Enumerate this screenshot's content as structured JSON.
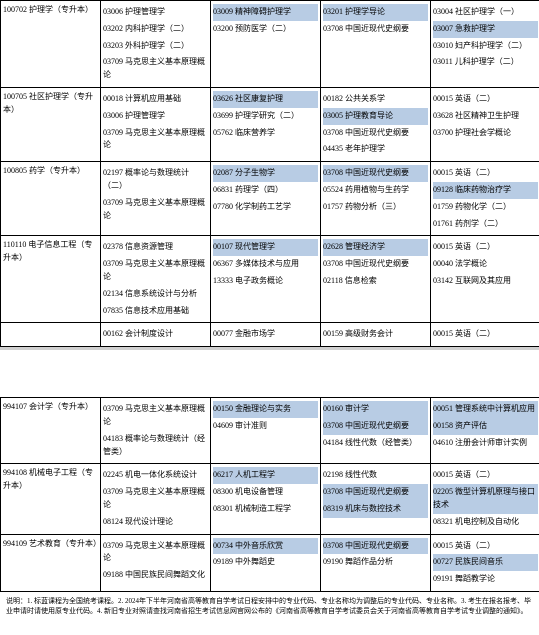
{
  "colors": {
    "highlight": "#b8cce4",
    "border": "#000000",
    "background": "#ffffff"
  },
  "table1": {
    "rows": [
      {
        "major": "100702 护理学（专升本）",
        "c1": [
          "03006 护理管理学",
          "03202 内科护理学（二）",
          "03203 外科护理学（二）",
          "03709 马克思主义基本原理概论"
        ],
        "c2": [
          "03009 精神障碍护理学",
          "03200 预防医学（二）"
        ],
        "c3": [
          "03201 护理学导论",
          "03708 中国近现代史纲要"
        ],
        "c4": [
          "03004 社区护理学（一）",
          "03007 急救护理学",
          "03010 妇产科护理学（二）",
          "03011 儿科护理学（二）"
        ],
        "hl_c1": [
          false,
          false,
          false,
          false
        ],
        "hl_c2": [
          true,
          false
        ],
        "hl_c3": [
          true,
          false
        ],
        "hl_c4": [
          false,
          true,
          false,
          false
        ]
      },
      {
        "major": "100705 社区护理学（专升本）",
        "c1": [
          "00018 计算机应用基础",
          "03006 护理管理学",
          "03709 马克思主义基本原理概论"
        ],
        "c2": [
          "03626 社区康复护理",
          "03699 护理学研究（二）",
          "05762 临床营养学"
        ],
        "c3": [
          "00182 公共关系学",
          "03005 护理教育导论",
          "03708 中国近现代史纲要",
          "04435 老年护理学"
        ],
        "c4": [
          "00015 英语（二）",
          "03628 社区精神卫生护理",
          "03700 护理社会学概论"
        ],
        "hl_c1": [
          false,
          false,
          false
        ],
        "hl_c2": [
          true,
          false,
          false
        ],
        "hl_c3": [
          false,
          true,
          false,
          false
        ],
        "hl_c4": [
          false,
          false,
          false
        ]
      },
      {
        "major": "100805 药学（专升本）",
        "c1": [
          "02197 概率论与数理统计（二）",
          "03709 马克思主义基本原理概论"
        ],
        "c2": [
          "02087 分子生物学",
          "06831 药理学（四）",
          "07780 化学制药工艺学"
        ],
        "c3": [
          "03708 中国近现代史纲要",
          "05524 药用植物与生药学",
          "01757 药物分析（三）"
        ],
        "c4": [
          "00015 英语（二）",
          "09128 临床药物治疗学",
          "01759 药物化学（二）",
          "01761 药剂学（二）"
        ],
        "hl_c1": [
          false,
          false
        ],
        "hl_c2": [
          true,
          false,
          false
        ],
        "hl_c3": [
          true,
          false,
          false
        ],
        "hl_c4": [
          false,
          true,
          false,
          false
        ]
      },
      {
        "major": "110110 电子信息工程（专升本）",
        "c1": [
          "02378 信息资源管理",
          "03709 马克思主义基本原理概论",
          "02134 信息系统设计与分析",
          "07835 信息技术应用基础"
        ],
        "c2": [
          "00107 现代管理学",
          "06367 多媒体技术与应用",
          "13333 电子政务概论"
        ],
        "c3": [
          "02628 管理经济学",
          "03708 中国近现代史纲要",
          "02118 信息检索"
        ],
        "c4": [
          "00015 英语（二）",
          "00040 法学概论",
          "03142 互联网及其应用"
        ],
        "hl_c1": [
          false,
          false,
          false,
          false
        ],
        "hl_c2": [
          true,
          false,
          false
        ],
        "hl_c3": [
          true,
          false,
          false
        ],
        "hl_c4": [
          false,
          false,
          false
        ]
      },
      {
        "major": "",
        "c1": [
          "00162 会计制度设计"
        ],
        "c2": [
          "00077 金融市场学"
        ],
        "c3": [
          "00159 高级财务会计"
        ],
        "c4": [
          "00015 英语（二）"
        ],
        "hl_c1": [
          false
        ],
        "hl_c2": [
          false
        ],
        "hl_c3": [
          false
        ],
        "hl_c4": [
          false
        ]
      }
    ]
  },
  "table2": {
    "rows": [
      {
        "major": "994107 会计学（专升本）",
        "c1": [
          "03709 马克思主义基本原理概论",
          "04183 概率论与数理统计（经管类）"
        ],
        "c2": [
          "00150 金融理论与实务",
          "04609 审计准则"
        ],
        "c3": [
          "00160 审计学",
          "03708 中国近现代史纲要",
          "04184 线性代数（经管类）"
        ],
        "c4": [
          "00051 管理系统中计算机应用",
          "00158 资产评估",
          "04610 注册会计师审计实例"
        ],
        "hl_c1": [
          false,
          false
        ],
        "hl_c2": [
          true,
          false
        ],
        "hl_c3": [
          true,
          true,
          false
        ],
        "hl_c4": [
          true,
          true,
          false
        ]
      },
      {
        "major": "994108 机械电子工程（专升本）",
        "c1": [
          "02245 机电一体化系统设计",
          "03709 马克思主义基本原理概论",
          "08124 现代设计理论"
        ],
        "c2": [
          "06217 人机工程学",
          "08300 机电设备管理",
          "08301 机械制造工程学"
        ],
        "c3": [
          "02198 线性代数",
          "03708 中国近现代史纲要",
          "08319 机床与数控技术"
        ],
        "c4": [
          "00015 英语（二）",
          "02205 微型计算机原理与接口技术",
          "08321 机电控制及自动化"
        ],
        "hl_c1": [
          false,
          false,
          false
        ],
        "hl_c2": [
          true,
          false,
          false
        ],
        "hl_c3": [
          false,
          true,
          true
        ],
        "hl_c4": [
          false,
          true,
          false
        ]
      },
      {
        "major": "994109 艺术教育（专升本）",
        "c1": [
          "03709 马克思主义基本原理概论",
          "09188 中国民族民间舞蹈文化"
        ],
        "c2": [
          "00734 中外音乐欣赏",
          "09189 中外舞蹈史"
        ],
        "c3": [
          "03708 中国近现代史纲要",
          "09190 舞蹈作品分析"
        ],
        "c4": [
          "00015 英语（二）",
          "00727 民族民间音乐",
          "09191 舞蹈教学论"
        ],
        "hl_c1": [
          false,
          false
        ],
        "hl_c2": [
          true,
          false
        ],
        "hl_c3": [
          true,
          false
        ],
        "hl_c4": [
          false,
          true,
          false
        ]
      }
    ]
  },
  "footnote": "说明：1. 标蓝课程为全国统考课程。2. 2024年下半年河南省高等教育自学考试日程安排中的专业代码、专业名称均为调整后的专业代码、专业名称。3. 考生在报名报考、毕业申请时请使用原专业代码。4. 新旧专业对照请查找河南省招生考试信息网官网公布的《河南省高等教育自学考试委员会关于河南省高等教育自学考试专业调整的通知》。"
}
